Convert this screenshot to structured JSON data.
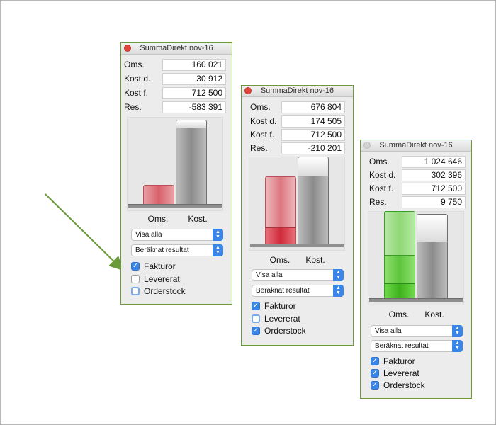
{
  "windows": [
    {
      "title": "SummaDirekt nov-16",
      "rows": [
        {
          "label": "Oms.",
          "value": "160 021"
        },
        {
          "label": "Kost d.",
          "value": "30 912"
        },
        {
          "label": "Kost f.",
          "value": "712 500"
        },
        {
          "label": "Res.",
          "value": "-583 391"
        }
      ],
      "chart_labels": {
        "oms": "Oms.",
        "kost": "Kost."
      },
      "select_view": "Visa alla",
      "select_result": "Beräknat resultat",
      "checkboxes": [
        {
          "label": "Fakturor",
          "checked": true
        },
        {
          "label": "Levererat",
          "checked": false
        },
        {
          "label": "Orderstock",
          "checked": false
        }
      ]
    },
    {
      "title": "SummaDirekt nov-16",
      "rows": [
        {
          "label": "Oms.",
          "value": "676 804"
        },
        {
          "label": "Kost d.",
          "value": "174 505"
        },
        {
          "label": "Kost f.",
          "value": "712 500"
        },
        {
          "label": "Res.",
          "value": "-210 201"
        }
      ],
      "chart_labels": {
        "oms": "Oms.",
        "kost": "Kost."
      },
      "select_view": "Visa alla",
      "select_result": "Beräknat resultat",
      "checkboxes": [
        {
          "label": "Fakturor",
          "checked": true
        },
        {
          "label": "Levererat",
          "checked": false
        },
        {
          "label": "Orderstock",
          "checked": true
        }
      ]
    },
    {
      "title": "SummaDirekt nov-16",
      "rows": [
        {
          "label": "Oms.",
          "value": "1 024 646"
        },
        {
          "label": "Kost d.",
          "value": "302 396"
        },
        {
          "label": "Kost f.",
          "value": "712 500"
        },
        {
          "label": "Res.",
          "value": "9 750"
        }
      ],
      "chart_labels": {
        "oms": "Oms.",
        "kost": "Kost."
      },
      "select_view": "Visa alla",
      "select_result": "Beräknat resultat",
      "checkboxes": [
        {
          "label": "Fakturor",
          "checked": true
        },
        {
          "label": "Levererat",
          "checked": true
        },
        {
          "label": "Orderstock",
          "checked": true
        }
      ]
    }
  ],
  "colors": {
    "window_border": "#6a9a3a",
    "arrow": "#6a9a3a",
    "negative_bar": "#d9606a",
    "positive_bar": "#5dc43c",
    "cost_bar": "#8c8c8c",
    "checkbox_blue": "#3a86e8"
  }
}
